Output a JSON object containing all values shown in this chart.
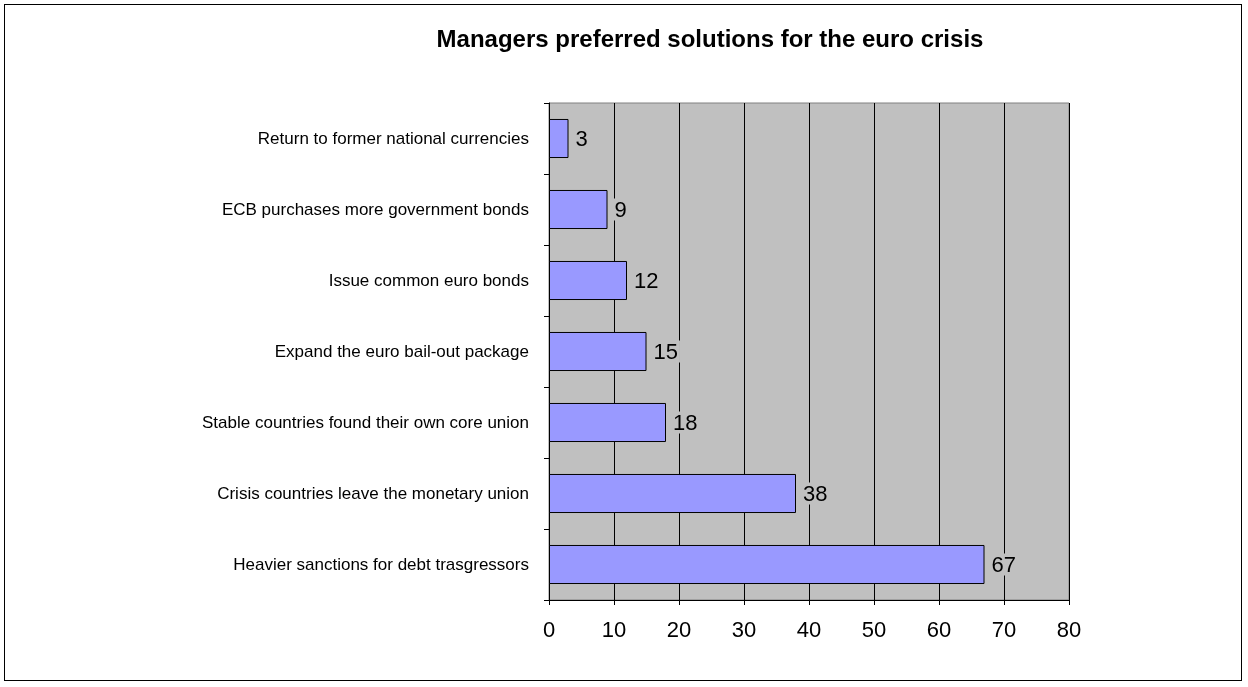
{
  "chart_data": {
    "type": "bar",
    "title": "Managers preferred solutions for the euro crisis",
    "orientation": "horizontal",
    "categories": [
      "Return to former national currencies",
      "ECB purchases more government bonds",
      "Issue common euro bonds",
      "Expand the euro bail-out package",
      "Stable countries found their own core union",
      "Crisis countries leave the monetary union",
      "Heavier sanctions for debt trasgressors"
    ],
    "values": [
      3,
      9,
      12,
      15,
      18,
      38,
      67
    ],
    "color": "#9999ff",
    "xlim": [
      0,
      80
    ],
    "xticks": [
      0,
      10,
      20,
      30,
      40,
      50,
      60,
      70,
      80
    ],
    "grid": "x",
    "data_labels": true
  }
}
